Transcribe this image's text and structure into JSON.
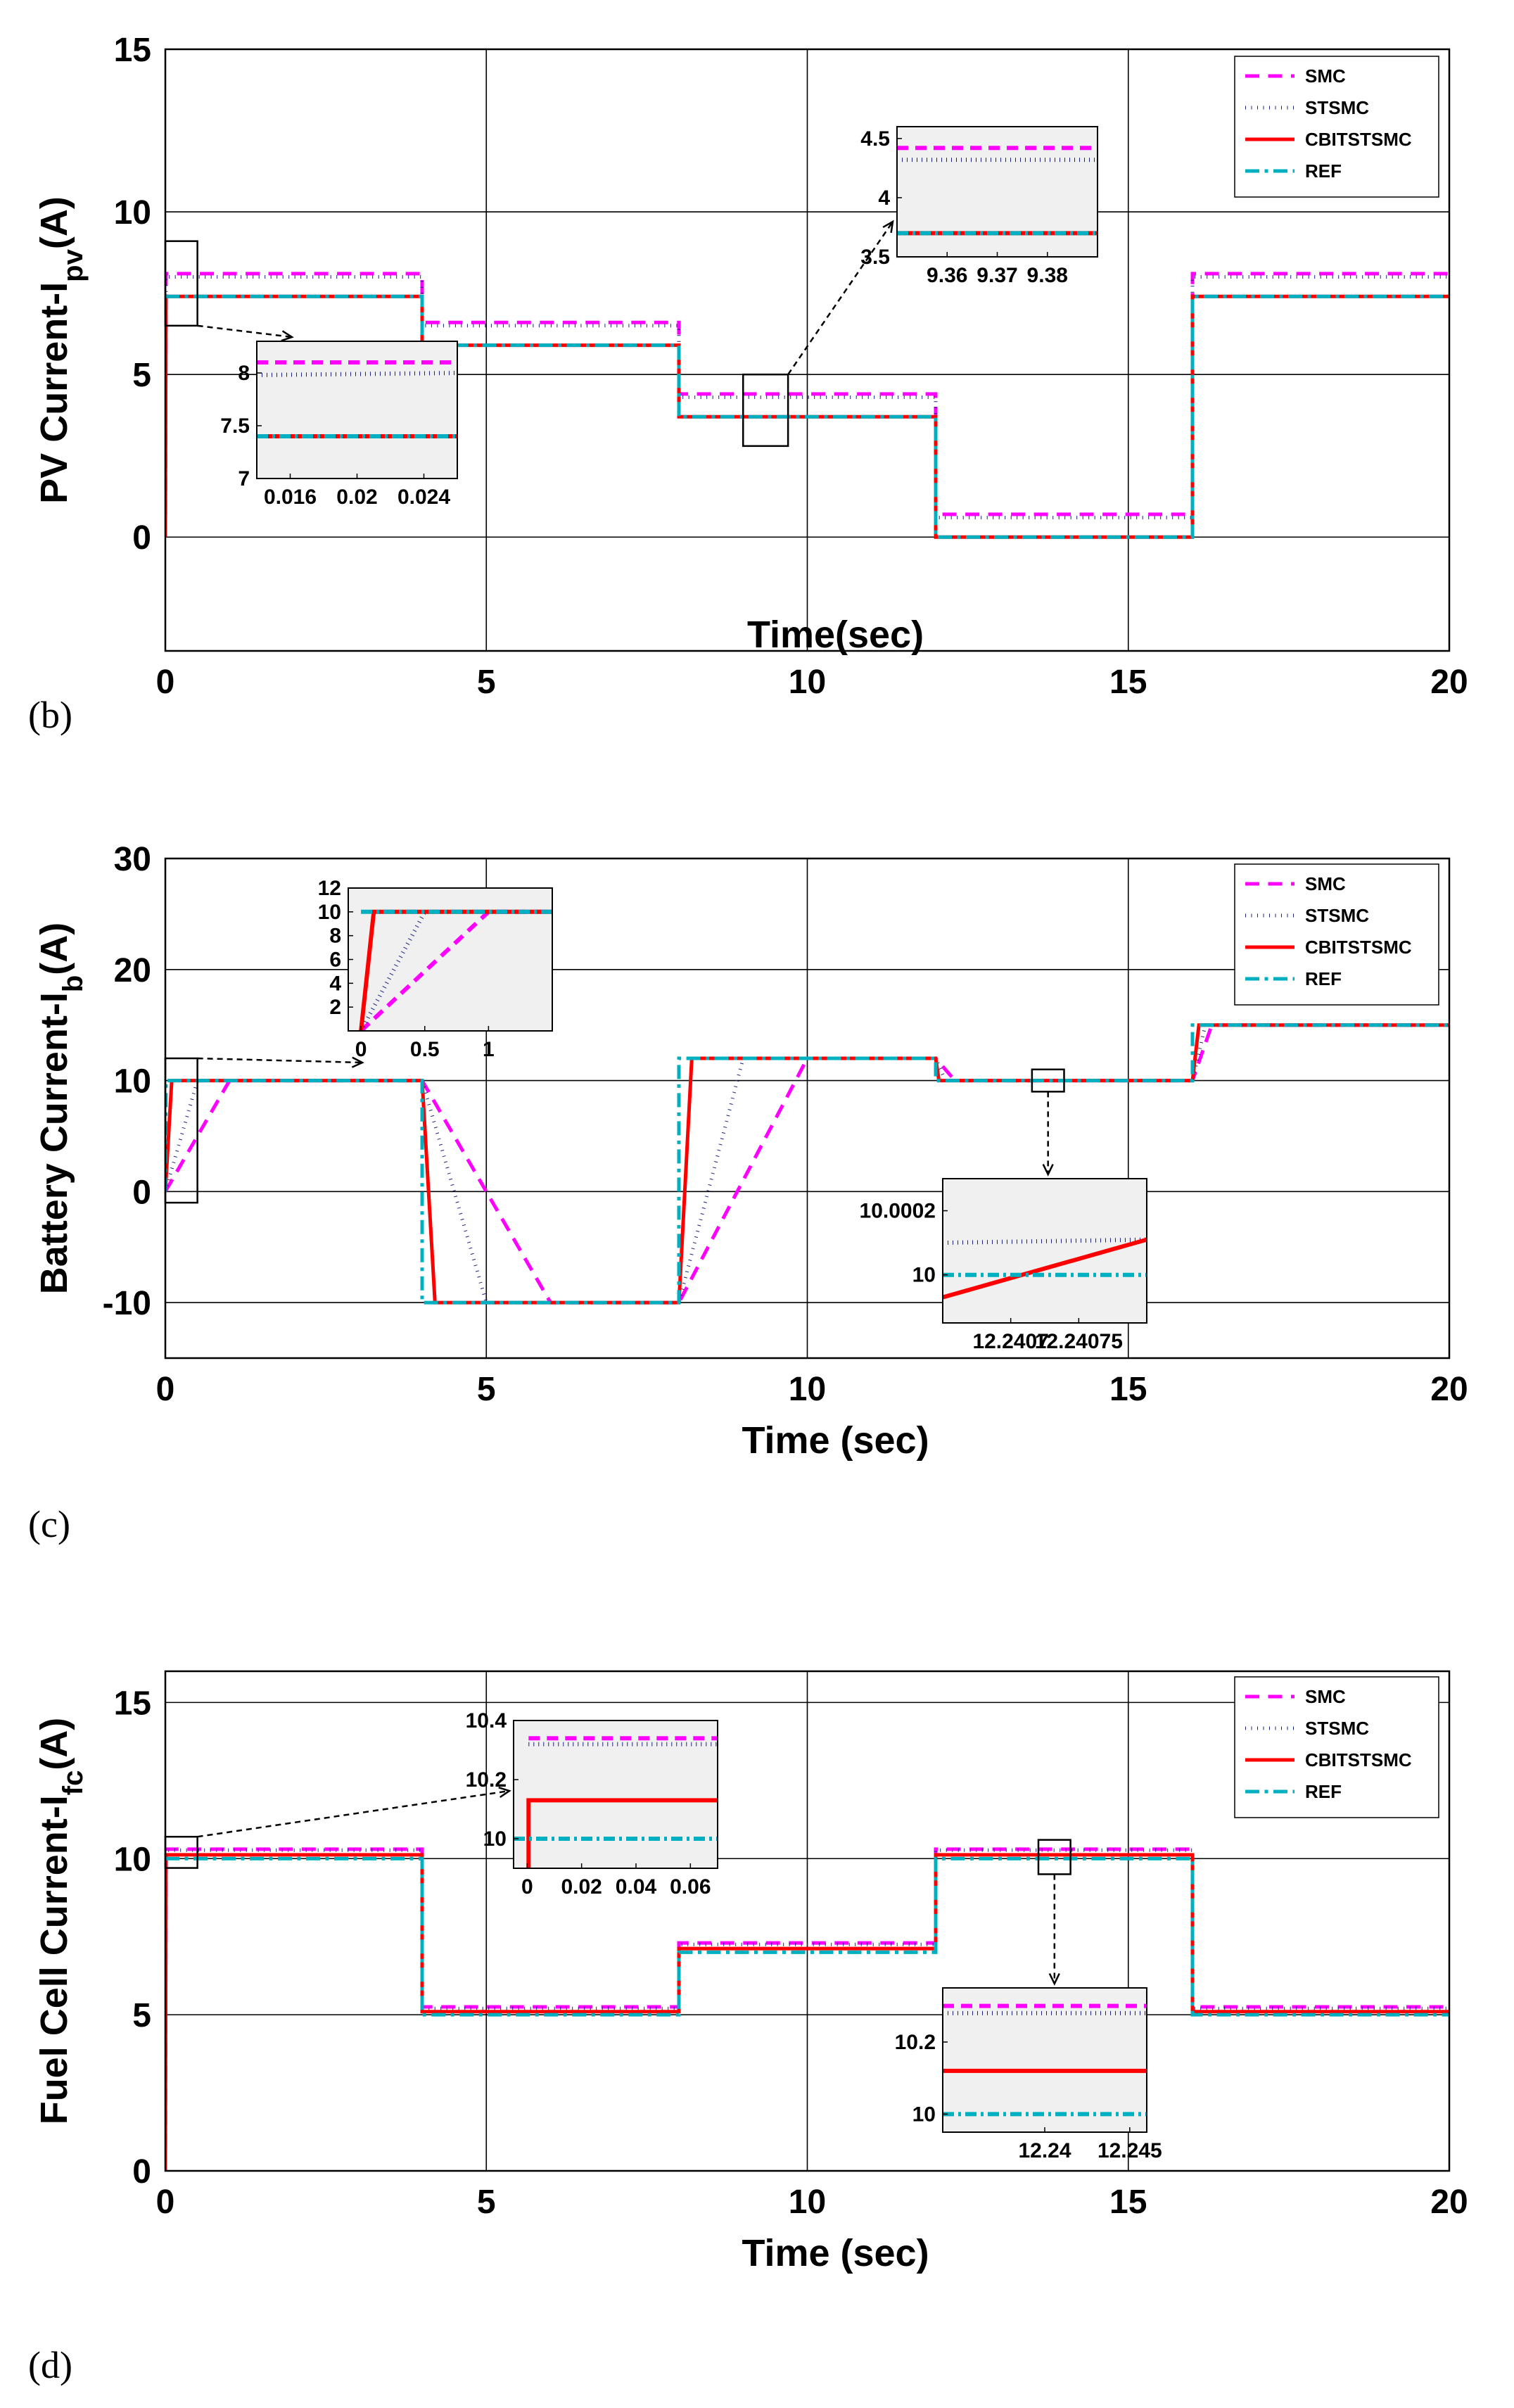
{
  "chart_data": [
    {
      "type": "line",
      "panel_label": "(b)",
      "ylabel_main": "PV Current-I",
      "ylabel_sub": "pv",
      "ylabel_unit": "(A)",
      "xlabel": "Time(sec)",
      "xlim": [
        0,
        20
      ],
      "ylim": [
        -3.5,
        15
      ],
      "xticks": [
        "0",
        "5",
        "10",
        "15",
        "20"
      ],
      "xtick_values": [
        0,
        5,
        10,
        15,
        20
      ],
      "yticks": [
        "0",
        "5",
        "10",
        "15"
      ],
      "ytick_values": [
        0,
        5,
        10,
        15
      ],
      "legend": [
        "SMC",
        "STSMC",
        "CBITSTSMC",
        "REF"
      ],
      "series": [
        {
          "name": "SMC",
          "x": [
            0,
            0.01,
            4,
            4,
            8,
            8,
            12,
            12,
            16,
            16,
            20
          ],
          "y": [
            0,
            8.1,
            8.1,
            6.6,
            6.6,
            4.4,
            4.4,
            0.7,
            0.7,
            8.1,
            8.1
          ]
        },
        {
          "name": "STSMC",
          "x": [
            0,
            0.01,
            4,
            4,
            8,
            8,
            12,
            12,
            16,
            16,
            20
          ],
          "y": [
            0,
            8.0,
            8.0,
            6.5,
            6.5,
            4.3,
            4.3,
            0.6,
            0.6,
            8.0,
            8.0
          ]
        },
        {
          "name": "CBITSTSMC",
          "x": [
            0,
            0.01,
            4,
            4,
            8,
            8,
            12,
            12,
            16,
            16,
            20
          ],
          "y": [
            0,
            7.4,
            7.4,
            5.9,
            5.9,
            3.7,
            3.7,
            0,
            0,
            7.4,
            7.4
          ]
        },
        {
          "name": "REF",
          "x": [
            0,
            4,
            4,
            8,
            8,
            12,
            12,
            16,
            16,
            20
          ],
          "y": [
            7.4,
            7.4,
            5.9,
            5.9,
            3.7,
            3.7,
            0,
            0,
            7.4,
            7.4
          ]
        }
      ],
      "insets": [
        {
          "xticks": [
            "0.016",
            "0.02",
            "0.024"
          ],
          "yticks": [
            "7",
            "7.5",
            "8"
          ],
          "xlim": [
            0.014,
            0.026
          ],
          "ylim": [
            7,
            8.3
          ],
          "ytick_values": [
            7,
            7.5,
            8
          ],
          "xtick_values": [
            0.016,
            0.02,
            0.024
          ],
          "series": [
            {
              "name": "SMC",
              "x": [
                0.014,
                0.026
              ],
              "y": [
                8.1,
                8.1
              ]
            },
            {
              "name": "STSMC",
              "x": [
                0.014,
                0.026
              ],
              "y": [
                7.98,
                8.0
              ]
            },
            {
              "name": "CBITSTSMC",
              "x": [
                0.014,
                0.026
              ],
              "y": [
                7.4,
                7.4
              ]
            },
            {
              "name": "REF",
              "x": [
                0.014,
                0.026
              ],
              "y": [
                7.4,
                7.4
              ]
            }
          ]
        },
        {
          "xticks": [
            "9.36",
            "9.37",
            "9.38"
          ],
          "yticks": [
            "3.5",
            "4",
            "4.5"
          ],
          "xlim": [
            9.35,
            9.39
          ],
          "ylim": [
            3.5,
            4.6
          ],
          "ytick_values": [
            3.5,
            4,
            4.5
          ],
          "xtick_values": [
            9.36,
            9.37,
            9.38
          ],
          "series": [
            {
              "name": "SMC",
              "x": [
                9.35,
                9.39
              ],
              "y": [
                4.42,
                4.42
              ]
            },
            {
              "name": "STSMC",
              "x": [
                9.35,
                9.39
              ],
              "y": [
                4.32,
                4.32
              ]
            },
            {
              "name": "CBITSTSMC",
              "x": [
                9.35,
                9.39
              ],
              "y": [
                3.7,
                3.7
              ]
            },
            {
              "name": "REF",
              "x": [
                9.35,
                9.39
              ],
              "y": [
                3.7,
                3.7
              ]
            }
          ]
        }
      ]
    },
    {
      "type": "line",
      "panel_label": "(c)",
      "ylabel_main": "Battery Current-I",
      "ylabel_sub": "b",
      "ylabel_unit": "(A)",
      "xlabel": "Time (sec)",
      "xlim": [
        0,
        20
      ],
      "ylim": [
        -15,
        30
      ],
      "xticks": [
        "0",
        "5",
        "10",
        "15",
        "20"
      ],
      "xtick_values": [
        0,
        5,
        10,
        15,
        20
      ],
      "yticks": [
        "-10",
        "0",
        "10",
        "20",
        "30"
      ],
      "ytick_values": [
        -10,
        0,
        10,
        20,
        30
      ],
      "legend": [
        "SMC",
        "STSMC",
        "CBITSTSMC",
        "REF"
      ],
      "series": [
        {
          "name": "SMC",
          "x": [
            0,
            1,
            4,
            6,
            8,
            10,
            12,
            12.3,
            16,
            16.3,
            20
          ],
          "y": [
            0,
            10,
            10,
            -10,
            -10,
            12,
            12,
            10,
            10,
            15,
            15
          ]
        },
        {
          "name": "STSMC",
          "x": [
            0,
            0.5,
            4,
            5,
            8,
            9,
            12,
            12.15,
            16,
            16.2,
            20
          ],
          "y": [
            0,
            10,
            10,
            -10,
            -10,
            12,
            12,
            10,
            10,
            15,
            15
          ]
        },
        {
          "name": "CBITSTSMC",
          "x": [
            0,
            0.1,
            4,
            4.2,
            8,
            8.2,
            12,
            12.05,
            16,
            16.1,
            20
          ],
          "y": [
            0,
            10,
            10,
            -10,
            -10,
            12,
            12,
            10,
            10,
            15,
            15
          ]
        },
        {
          "name": "REF",
          "x": [
            0,
            0.01,
            4,
            4,
            8,
            8,
            12,
            12,
            16,
            16,
            20
          ],
          "y": [
            0,
            10,
            10,
            -10,
            -10,
            12,
            12,
            10,
            10,
            15,
            15
          ]
        }
      ],
      "insets": [
        {
          "xticks": [
            "0",
            "0.5",
            "1"
          ],
          "yticks": [
            "2",
            "4",
            "6",
            "8",
            "10",
            "12"
          ],
          "xlim": [
            -0.1,
            1.5
          ],
          "ylim": [
            0,
            12
          ],
          "ytick_values": [
            2,
            4,
            6,
            8,
            10,
            12
          ],
          "xtick_values": [
            0,
            0.5,
            1
          ],
          "series": [
            {
              "name": "SMC",
              "x": [
                0,
                1,
                1.5
              ],
              "y": [
                0,
                10,
                10
              ]
            },
            {
              "name": "STSMC",
              "x": [
                0,
                0.5,
                1.5
              ],
              "y": [
                0,
                10,
                10
              ]
            },
            {
              "name": "CBITSTSMC",
              "x": [
                0,
                0.1,
                1.5
              ],
              "y": [
                0,
                10,
                10
              ]
            },
            {
              "name": "REF",
              "x": [
                0,
                1.5
              ],
              "y": [
                10,
                10
              ]
            }
          ]
        },
        {
          "xticks": [
            "12.2407",
            "12.24075"
          ],
          "yticks": [
            "10",
            "10.0002"
          ],
          "xlim": [
            12.24065,
            12.2408
          ],
          "ylim": [
            9.99985,
            10.0003
          ],
          "ytick_values": [
            10,
            10.0002
          ],
          "xtick_values": [
            12.2407,
            12.24075
          ],
          "series": [
            {
              "name": "STSMC",
              "x": [
                12.24065,
                12.2408
              ],
              "y": [
                10.0001,
                10.00011
              ]
            },
            {
              "name": "CBITSTSMC",
              "x": [
                12.24065,
                12.2408
              ],
              "y": [
                9.99993,
                10.00011
              ]
            },
            {
              "name": "REF",
              "x": [
                12.24065,
                12.2408
              ],
              "y": [
                10,
                10
              ]
            }
          ]
        }
      ]
    },
    {
      "type": "line",
      "panel_label": "(d)",
      "ylabel_main": "Fuel Cell Current-I",
      "ylabel_sub": "fc",
      "ylabel_unit": "(A)",
      "xlabel": "Time (sec)",
      "xlim": [
        0,
        20
      ],
      "ylim": [
        0,
        16
      ],
      "xticks": [
        "0",
        "5",
        "10",
        "15",
        "20"
      ],
      "xtick_values": [
        0,
        5,
        10,
        15,
        20
      ],
      "yticks": [
        "0",
        "5",
        "10",
        "15"
      ],
      "ytick_values": [
        0,
        5,
        10,
        15
      ],
      "legend": [
        "SMC",
        "STSMC",
        "CBITSTSMC",
        "REF"
      ],
      "series": [
        {
          "name": "SMC",
          "x": [
            0,
            0.01,
            4,
            4,
            8,
            8,
            12,
            12,
            16,
            16,
            20
          ],
          "y": [
            0,
            10.3,
            10.3,
            5.25,
            5.25,
            7.3,
            7.3,
            10.3,
            10.3,
            5.25,
            5.25
          ]
        },
        {
          "name": "STSMC",
          "x": [
            0,
            0.01,
            4,
            4,
            8,
            8,
            12,
            12,
            16,
            16,
            20
          ],
          "y": [
            0,
            10.27,
            10.27,
            5.2,
            5.2,
            7.25,
            7.25,
            10.27,
            10.27,
            5.2,
            5.2
          ]
        },
        {
          "name": "CBITSTSMC",
          "x": [
            0,
            0.01,
            4,
            4,
            8,
            8,
            12,
            12,
            16,
            16,
            20
          ],
          "y": [
            0,
            10.12,
            10.12,
            5.1,
            5.1,
            7.12,
            7.12,
            10.12,
            10.12,
            5.1,
            5.1
          ]
        },
        {
          "name": "REF",
          "x": [
            0,
            4,
            4,
            8,
            8,
            12,
            12,
            16,
            16,
            20
          ],
          "y": [
            10,
            10,
            5,
            5,
            7,
            7,
            10,
            10,
            5,
            5
          ]
        }
      ],
      "insets": [
        {
          "xticks": [
            "0",
            "0.02",
            "0.04",
            "0.06"
          ],
          "yticks": [
            "10",
            "10.2",
            "10.4"
          ],
          "xlim": [
            -0.005,
            0.07
          ],
          "ylim": [
            9.9,
            10.4
          ],
          "ytick_values": [
            10,
            10.2,
            10.4
          ],
          "xtick_values": [
            0,
            0.02,
            0.04,
            0.06
          ],
          "series": [
            {
              "name": "SMC",
              "x": [
                0.0005,
                0.07
              ],
              "y": [
                10.34,
                10.34
              ]
            },
            {
              "name": "STSMC",
              "x": [
                0.0005,
                0.07
              ],
              "y": [
                10.32,
                10.32
              ]
            },
            {
              "name": "CBITSTSMC",
              "x": [
                0,
                0.0005,
                0.0005,
                0.07
              ],
              "y": [
                9.9,
                9.9,
                10.13,
                10.13
              ]
            },
            {
              "name": "REF",
              "x": [
                -0.005,
                0.07
              ],
              "y": [
                10,
                10
              ]
            }
          ]
        },
        {
          "xticks": [
            "12.24",
            "12.245"
          ],
          "yticks": [
            "10",
            "10.2"
          ],
          "xlim": [
            12.234,
            12.246
          ],
          "ylim": [
            9.95,
            10.35
          ],
          "ytick_values": [
            10,
            10.2
          ],
          "xtick_values": [
            12.24,
            12.245
          ],
          "series": [
            {
              "name": "SMC",
              "x": [
                12.234,
                12.246
              ],
              "y": [
                10.3,
                10.3
              ]
            },
            {
              "name": "STSMC",
              "x": [
                12.234,
                12.246
              ],
              "y": [
                10.28,
                10.28
              ]
            },
            {
              "name": "CBITSTSMC",
              "x": [
                12.234,
                12.246
              ],
              "y": [
                10.12,
                10.12
              ]
            },
            {
              "name": "REF",
              "x": [
                12.234,
                12.246
              ],
              "y": [
                10,
                10
              ]
            }
          ]
        }
      ]
    }
  ],
  "styles": {
    "SMC": {
      "color": "#ff00ff",
      "dash": "dashed"
    },
    "STSMC": {
      "color": "#1a237e",
      "dash": "dotted"
    },
    "CBITSTSMC": {
      "color": "#ff0000",
      "dash": "solid"
    },
    "REF": {
      "color": "#00b0c0",
      "dash": "dashdot"
    }
  }
}
